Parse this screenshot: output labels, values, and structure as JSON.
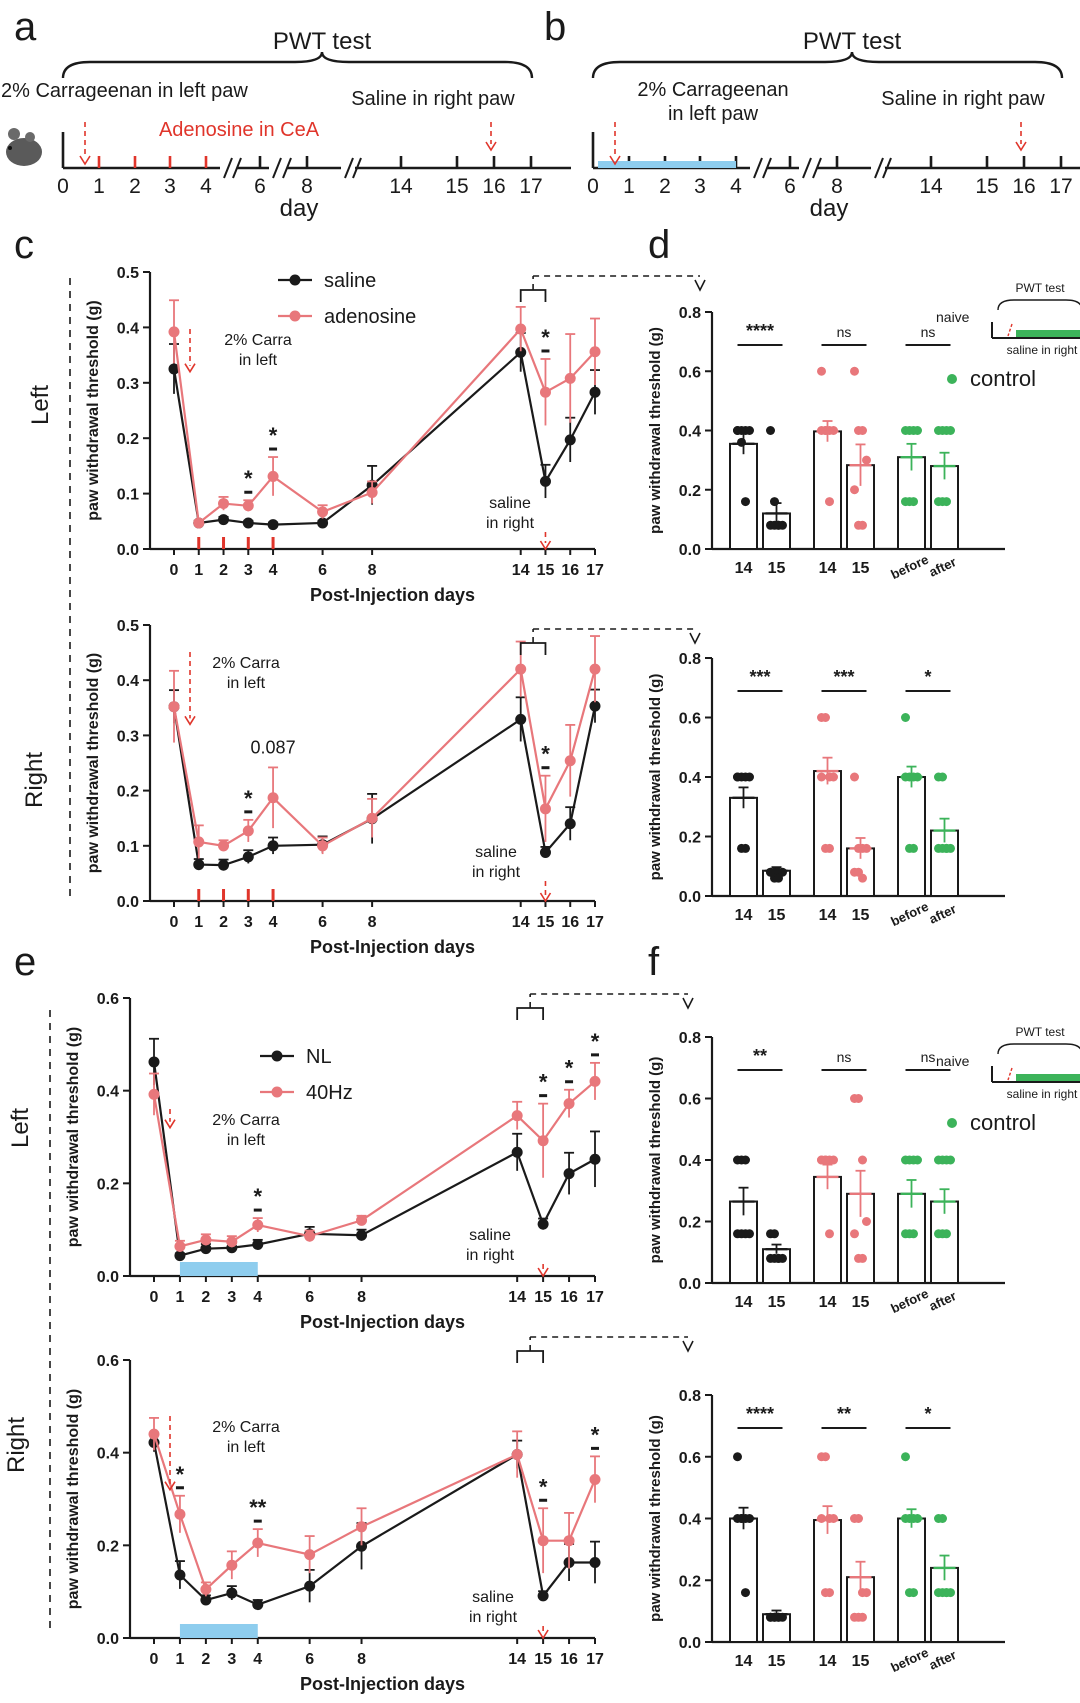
{
  "panels": {
    "a": {
      "letter": "a",
      "header": "PWT test",
      "carra_label": "2% Carrageenan in left paw",
      "treat_label": "Adenosine in CeA",
      "saline_label": "Saline in right paw",
      "ticks": [
        "0",
        "1",
        "2",
        "3",
        "4",
        "6",
        "8",
        "14",
        "15",
        "16",
        "17"
      ],
      "day_label": "day"
    },
    "b": {
      "letter": "b",
      "header": "PWT test",
      "carra_label1": "2% Carrageenan",
      "carra_label2": "in left paw",
      "saline_label": "Saline in right paw",
      "ticks": [
        "0",
        "1",
        "2",
        "3",
        "4",
        "6",
        "8",
        "14",
        "15",
        "16",
        "17"
      ],
      "day_label": "day"
    },
    "c": {
      "letter": "c",
      "side_top": "Left",
      "side_bottom": "Right"
    },
    "d": {
      "letter": "d",
      "inset_title": "PWT test",
      "inset_naive": "naive",
      "inset_saline": "saline in right",
      "legend": "control"
    },
    "e": {
      "letter": "e",
      "side_top": "Left",
      "side_bottom": "Right"
    },
    "f": {
      "letter": "f",
      "inset_title": "PWT test",
      "inset_naive": "naive",
      "inset_saline": "saline in right",
      "legend": "control"
    }
  },
  "colors": {
    "black": "#1a1a1a",
    "pink": "#e8777b",
    "green": "#3cb35a",
    "red": "#e0352b",
    "blue": "#8ecdee"
  },
  "chart_data": [
    {
      "id": "c_left",
      "type": "line",
      "xlabel": "Post-Injection days",
      "ylabel": "paw withdrawal threshold (g)",
      "ylim": [
        0,
        0.5
      ],
      "yticks": [
        "0.0",
        "0.1",
        "0.2",
        "0.3",
        "0.4",
        "0.5"
      ],
      "x": [
        0,
        1,
        2,
        3,
        4,
        6,
        8,
        14,
        15,
        16,
        17
      ],
      "series": [
        {
          "name": "saline",
          "color": "black",
          "values": [
            0.325,
            0.047,
            0.053,
            0.047,
            0.044,
            0.047,
            0.115,
            0.355,
            0.122,
            0.197,
            0.283
          ],
          "err": [
            0.045,
            0.004,
            0.005,
            0.004,
            0.004,
            0.004,
            0.035,
            0.035,
            0.03,
            0.04,
            0.04
          ]
        },
        {
          "name": "adenosine",
          "color": "pink",
          "values": [
            0.392,
            0.047,
            0.082,
            0.078,
            0.131,
            0.067,
            0.102,
            0.397,
            0.283,
            0.308,
            0.356
          ],
          "err": [
            0.057,
            0.004,
            0.012,
            0.01,
            0.035,
            0.012,
            0.02,
            0.04,
            0.06,
            0.08,
            0.06
          ]
        }
      ],
      "stars": [
        {
          "x": 3,
          "text": "*"
        },
        {
          "x": 4,
          "text": "*"
        },
        {
          "x": 15,
          "text": "*"
        }
      ],
      "annot": {
        "carra1": "2% Carra",
        "carra2": "in left",
        "saline1": "saline",
        "saline2": "in right"
      },
      "red_ticks": [
        1,
        2,
        3,
        4
      ]
    },
    {
      "id": "c_right",
      "type": "line",
      "xlabel": "Post-Injection days",
      "ylabel": "paw withdrawal threshold (g)",
      "ylim": [
        0,
        0.5
      ],
      "yticks": [
        "0.0",
        "0.1",
        "0.2",
        "0.3",
        "0.4",
        "0.5"
      ],
      "x": [
        0,
        1,
        2,
        3,
        4,
        6,
        8,
        14,
        15,
        16,
        17
      ],
      "series": [
        {
          "name": "saline",
          "color": "black",
          "values": [
            0.352,
            0.066,
            0.065,
            0.08,
            0.1,
            0.102,
            0.149,
            0.329,
            0.088,
            0.14,
            0.353
          ],
          "err": [
            0.03,
            0.01,
            0.01,
            0.012,
            0.015,
            0.015,
            0.045,
            0.04,
            0.01,
            0.03,
            0.03
          ]
        },
        {
          "name": "adenosine",
          "color": "pink",
          "values": [
            0.352,
            0.107,
            0.1,
            0.127,
            0.187,
            0.1,
            0.15,
            0.42,
            0.167,
            0.254,
            0.42
          ],
          "err": [
            0.065,
            0.03,
            0.01,
            0.02,
            0.055,
            0.015,
            0.035,
            0.05,
            0.06,
            0.065,
            0.06
          ]
        }
      ],
      "stars": [
        {
          "x": 3,
          "text": "*"
        },
        {
          "x": 4,
          "text": "0.087"
        },
        {
          "x": 15,
          "text": "*"
        }
      ],
      "annot": {
        "carra1": "2% Carra",
        "carra2": "in left",
        "saline1": "saline",
        "saline2": "in right"
      },
      "red_ticks": [
        1,
        2,
        3,
        4
      ]
    },
    {
      "id": "d_left",
      "type": "bar",
      "ylabel": "paw withdrawal threshold (g)",
      "ylim": [
        0,
        0.8
      ],
      "yticks": [
        "0.0",
        "0.2",
        "0.4",
        "0.6",
        "0.8"
      ],
      "groups": [
        {
          "labels": [
            "14",
            "15"
          ],
          "color": "black",
          "means": [
            0.355,
            0.12
          ],
          "err": [
            0.035,
            0.035
          ],
          "sig": "****",
          "points": [
            [
              0.4,
              0.4,
              0.4,
              0.4,
              0.4,
              0.36,
              0.16
            ],
            [
              0.4,
              0.16,
              0.08,
              0.08,
              0.08,
              0.08,
              0.08
            ]
          ]
        },
        {
          "labels": [
            "14",
            "15"
          ],
          "color": "pink",
          "means": [
            0.397,
            0.283
          ],
          "err": [
            0.035,
            0.07
          ],
          "sig": "ns",
          "points": [
            [
              0.6,
              0.4,
              0.4,
              0.4,
              0.4,
              0.4,
              0.16
            ],
            [
              0.6,
              0.4,
              0.4,
              0.3,
              0.2,
              0.08,
              0.08
            ]
          ]
        },
        {
          "labels": [
            "before",
            "after"
          ],
          "color": "green",
          "means": [
            0.31,
            0.28
          ],
          "err": [
            0.045,
            0.045
          ],
          "sig": "ns",
          "points": [
            [
              0.4,
              0.4,
              0.4,
              0.4,
              0.16,
              0.16,
              0.16
            ],
            [
              0.4,
              0.4,
              0.4,
              0.4,
              0.16,
              0.16,
              0.16
            ]
          ]
        }
      ]
    },
    {
      "id": "d_right",
      "type": "bar",
      "ylabel": "paw withdrawal threshold (g)",
      "ylim": [
        0,
        0.8
      ],
      "yticks": [
        "0.0",
        "0.2",
        "0.4",
        "0.6",
        "0.8"
      ],
      "groups": [
        {
          "labels": [
            "14",
            "15"
          ],
          "color": "black",
          "means": [
            0.33,
            0.085
          ],
          "err": [
            0.035,
            0.012
          ],
          "sig": "***",
          "points": [
            [
              0.4,
              0.4,
              0.4,
              0.4,
              0.4,
              0.16,
              0.16
            ],
            [
              0.08,
              0.08,
              0.08,
              0.08,
              0.08,
              0.06,
              0.06
            ]
          ]
        },
        {
          "labels": [
            "14",
            "15"
          ],
          "color": "pink",
          "means": [
            0.42,
            0.16
          ],
          "err": [
            0.045,
            0.035
          ],
          "sig": "***",
          "points": [
            [
              0.6,
              0.6,
              0.4,
              0.4,
              0.4,
              0.16,
              0.16
            ],
            [
              0.4,
              0.16,
              0.16,
              0.16,
              0.08,
              0.08,
              0.06
            ]
          ]
        },
        {
          "labels": [
            "before",
            "after"
          ],
          "color": "green",
          "means": [
            0.4,
            0.22
          ],
          "err": [
            0.035,
            0.04
          ],
          "sig": "*",
          "points": [
            [
              0.6,
              0.4,
              0.4,
              0.4,
              0.4,
              0.16,
              0.16
            ],
            [
              0.4,
              0.4,
              0.16,
              0.16,
              0.16,
              0.16,
              0.16
            ]
          ]
        }
      ]
    },
    {
      "id": "e_left",
      "type": "line",
      "xlabel": "Post-Injection days",
      "ylabel": "paw withdrawal threshold (g)",
      "ylim": [
        0,
        0.6
      ],
      "yticks": [
        "0.0",
        "0.2",
        "0.4",
        "0.6"
      ],
      "x": [
        0,
        1,
        2,
        3,
        4,
        6,
        8,
        14,
        15,
        16,
        17
      ],
      "series": [
        {
          "name": "NL",
          "color": "black",
          "values": [
            0.462,
            0.044,
            0.059,
            0.061,
            0.068,
            0.091,
            0.088,
            0.267,
            0.112,
            0.221,
            0.252
          ],
          "err": [
            0.05,
            0.005,
            0.01,
            0.01,
            0.01,
            0.015,
            0.012,
            0.04,
            0.012,
            0.045,
            0.06
          ]
        },
        {
          "name": "40Hz",
          "color": "pink",
          "values": [
            0.392,
            0.064,
            0.078,
            0.074,
            0.11,
            0.086,
            0.12,
            0.346,
            0.292,
            0.372,
            0.42
          ],
          "err": [
            0.045,
            0.012,
            0.012,
            0.012,
            0.015,
            0.012,
            0.01,
            0.03,
            0.08,
            0.03,
            0.04
          ]
        }
      ],
      "stars": [
        {
          "x": 4,
          "text": "*"
        },
        {
          "x": 15,
          "text": "*"
        },
        {
          "x": 16,
          "text": "*"
        },
        {
          "x": 17,
          "text": "*"
        }
      ],
      "annot": {
        "carra1": "2% Carra",
        "carra2": "in left",
        "saline1": "saline",
        "saline2": "in right"
      },
      "blue_band": [
        1,
        4
      ]
    },
    {
      "id": "e_right",
      "type": "line",
      "xlabel": "Post-Injection days",
      "ylabel": "paw withdrawal threshold (g)",
      "ylim": [
        0,
        0.6
      ],
      "yticks": [
        "0.0",
        "0.2",
        "0.4",
        "0.6"
      ],
      "x": [
        0,
        1,
        2,
        3,
        4,
        6,
        8,
        14,
        15,
        16,
        17
      ],
      "series": [
        {
          "name": "NL",
          "color": "black",
          "values": [
            0.422,
            0.136,
            0.082,
            0.097,
            0.072,
            0.112,
            0.198,
            0.396,
            0.091,
            0.163,
            0.163
          ],
          "err": [
            0.02,
            0.03,
            0.01,
            0.015,
            0.01,
            0.035,
            0.05,
            0.03,
            0.01,
            0.04,
            0.045
          ]
        },
        {
          "name": "40Hz",
          "color": "pink",
          "values": [
            0.44,
            0.267,
            0.105,
            0.157,
            0.205,
            0.18,
            0.24,
            0.396,
            0.21,
            0.21,
            0.342
          ],
          "err": [
            0.035,
            0.04,
            0.015,
            0.03,
            0.03,
            0.04,
            0.04,
            0.05,
            0.07,
            0.06,
            0.05
          ]
        }
      ],
      "stars": [
        {
          "x": 1,
          "text": "*"
        },
        {
          "x": 4,
          "text": "**"
        },
        {
          "x": 15,
          "text": "*"
        },
        {
          "x": 17,
          "text": "*"
        }
      ],
      "annot": {
        "carra1": "2% Carra",
        "carra2": "in left",
        "saline1": "saline",
        "saline2": "in right"
      },
      "blue_band": [
        1,
        4
      ]
    },
    {
      "id": "f_left",
      "type": "bar",
      "ylabel": "paw withdrawal threshold (g)",
      "ylim": [
        0,
        0.8
      ],
      "yticks": [
        "0.0",
        "0.2",
        "0.4",
        "0.6",
        "0.8"
      ],
      "groups": [
        {
          "labels": [
            "14",
            "15"
          ],
          "color": "black",
          "means": [
            0.265,
            0.11
          ],
          "err": [
            0.045,
            0.015
          ],
          "sig": "**",
          "points": [
            [
              0.4,
              0.4,
              0.4,
              0.16,
              0.16,
              0.16,
              0.16
            ],
            [
              0.16,
              0.16,
              0.08,
              0.08,
              0.08,
              0.08,
              0.08
            ]
          ]
        },
        {
          "labels": [
            "14",
            "15"
          ],
          "color": "pink",
          "means": [
            0.345,
            0.29
          ],
          "err": [
            0.04,
            0.075
          ],
          "sig": "ns",
          "points": [
            [
              0.4,
              0.4,
              0.4,
              0.4,
              0.4,
              0.4,
              0.16
            ],
            [
              0.6,
              0.6,
              0.4,
              0.2,
              0.16,
              0.08,
              0.08
            ]
          ]
        },
        {
          "labels": [
            "before",
            "after"
          ],
          "color": "green",
          "means": [
            0.29,
            0.265
          ],
          "err": [
            0.045,
            0.04
          ],
          "sig": "ns",
          "points": [
            [
              0.4,
              0.4,
              0.4,
              0.4,
              0.16,
              0.16,
              0.16
            ],
            [
              0.4,
              0.4,
              0.4,
              0.4,
              0.16,
              0.16,
              0.16
            ]
          ]
        }
      ]
    },
    {
      "id": "f_right",
      "type": "bar",
      "ylabel": "paw withdrawal threshold (g)",
      "ylim": [
        0,
        0.8
      ],
      "yticks": [
        "0.0",
        "0.2",
        "0.4",
        "0.6",
        "0.8"
      ],
      "groups": [
        {
          "labels": [
            "14",
            "15"
          ],
          "color": "black",
          "means": [
            0.4,
            0.09
          ],
          "err": [
            0.035,
            0.012
          ],
          "sig": "****",
          "points": [
            [
              0.6,
              0.4,
              0.4,
              0.4,
              0.4,
              0.4,
              0.16
            ],
            [
              0.08,
              0.08,
              0.08,
              0.08,
              0.08,
              0.08,
              0.08
            ]
          ]
        },
        {
          "labels": [
            "14",
            "15"
          ],
          "color": "pink",
          "means": [
            0.395,
            0.21
          ],
          "err": [
            0.045,
            0.05
          ],
          "sig": "**",
          "points": [
            [
              0.6,
              0.6,
              0.4,
              0.4,
              0.4,
              0.16,
              0.16
            ],
            [
              0.4,
              0.4,
              0.16,
              0.16,
              0.08,
              0.08,
              0.08
            ]
          ]
        },
        {
          "labels": [
            "before",
            "after"
          ],
          "color": "green",
          "means": [
            0.4,
            0.24
          ],
          "err": [
            0.03,
            0.04
          ],
          "sig": "*",
          "points": [
            [
              0.6,
              0.4,
              0.4,
              0.4,
              0.4,
              0.16,
              0.16
            ],
            [
              0.4,
              0.4,
              0.16,
              0.16,
              0.16,
              0.16,
              0.16
            ]
          ]
        }
      ]
    }
  ]
}
